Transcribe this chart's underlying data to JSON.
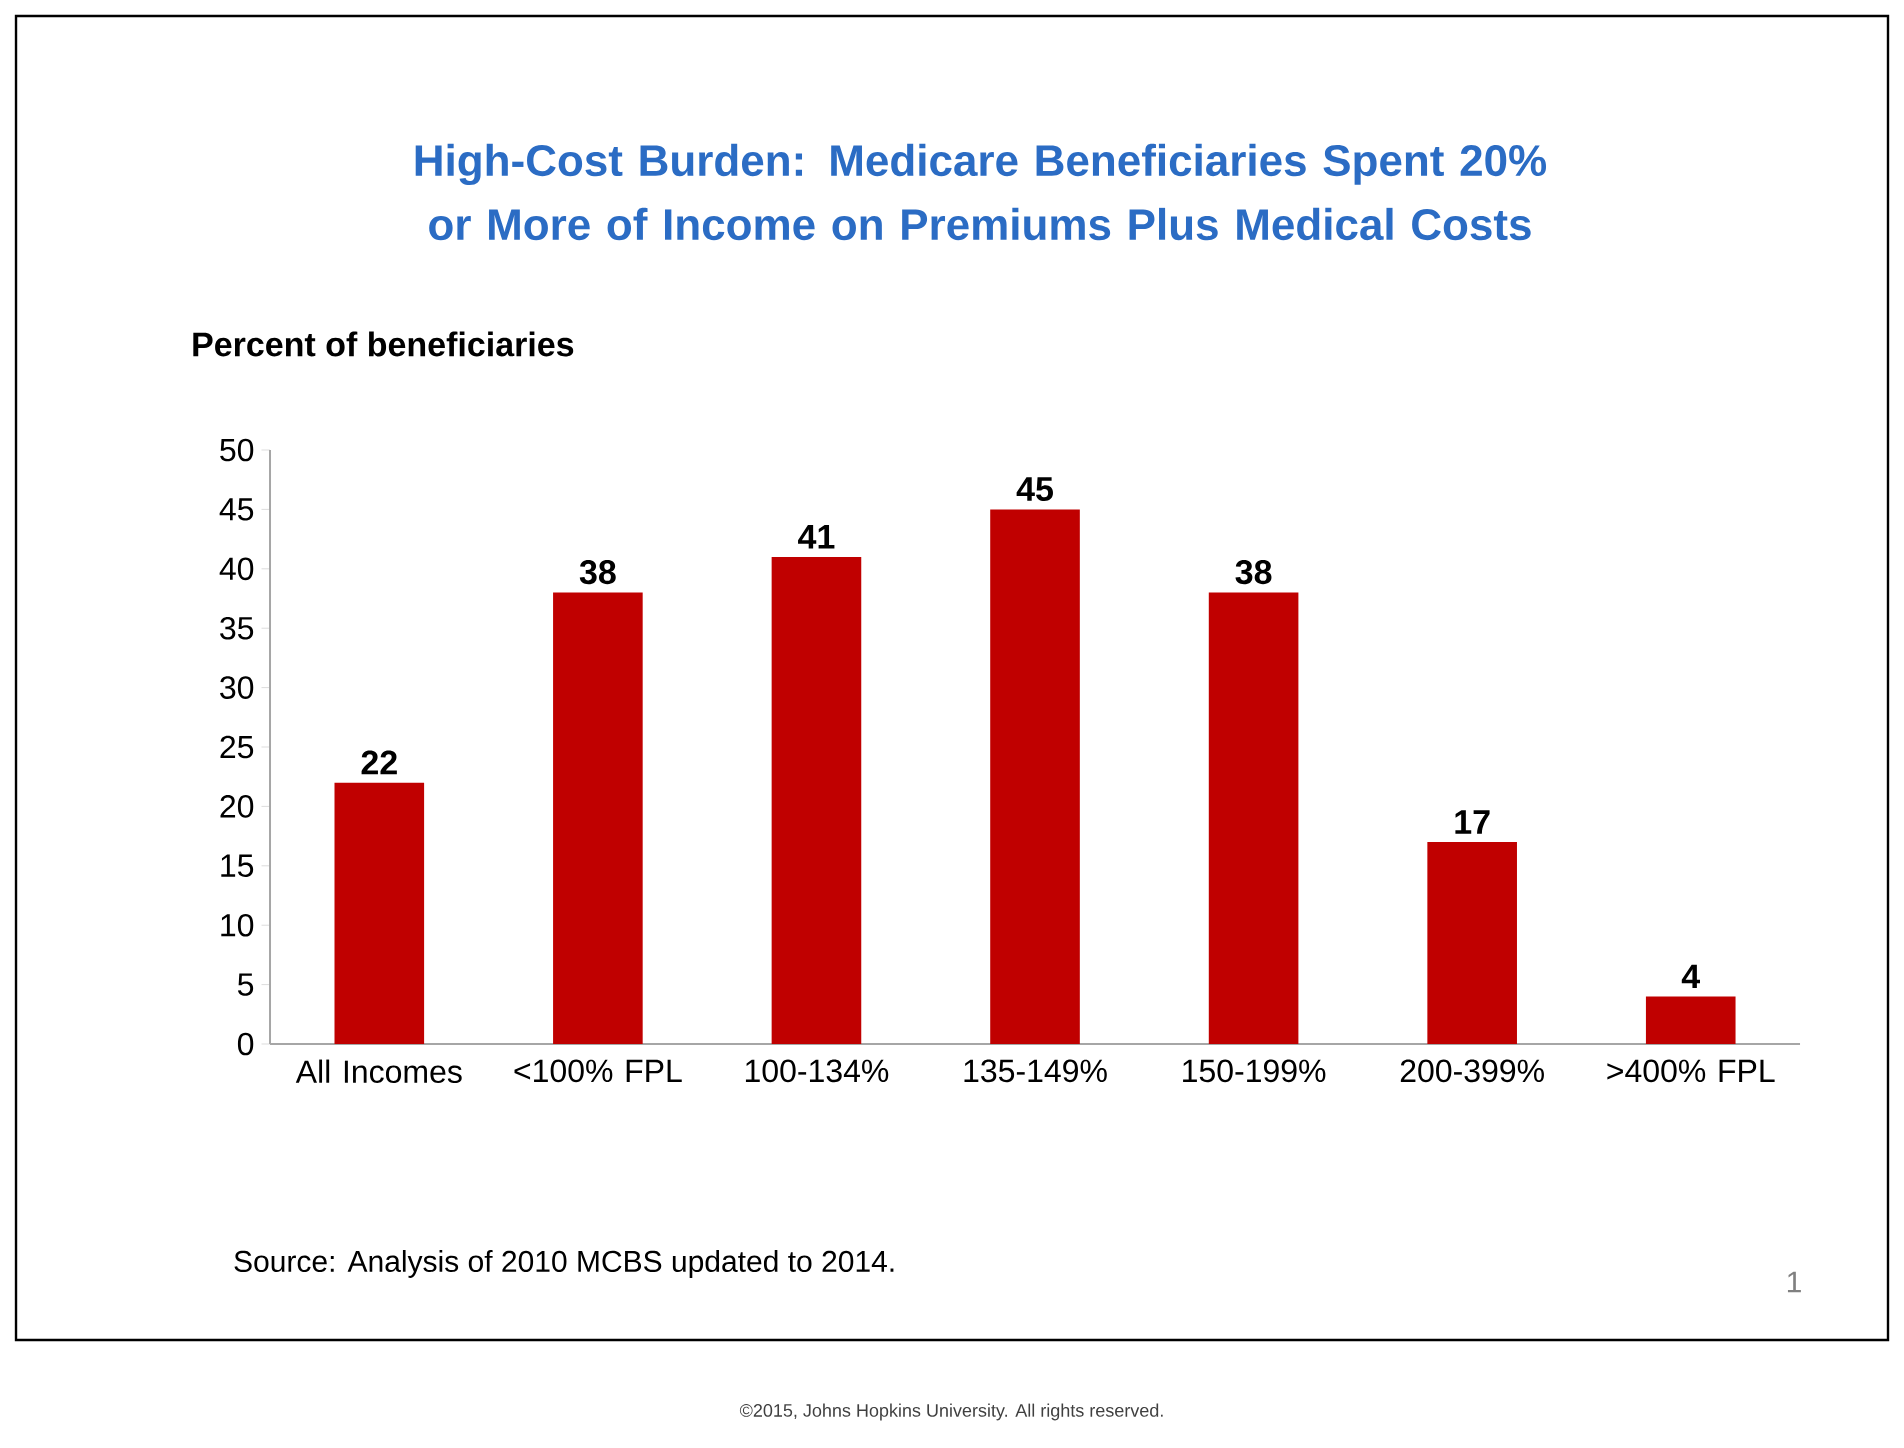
{
  "chart_data": {
    "type": "bar",
    "title": "High-Cost Burden: Medicare Beneficiaries Spent 20% or More of Income on Premiums Plus Medical Costs",
    "ylabel": "Percent of beneficiaries",
    "categories": [
      "All Incomes",
      "<100% FPL",
      "100-134%",
      "135-149%",
      "150-199%",
      "200-399%",
      ">400% FPL"
    ],
    "values": [
      22,
      38,
      41,
      45,
      38,
      17,
      4
    ],
    "color": "#c00000",
    "data_labels": true,
    "ylim": [
      0,
      50
    ],
    "yticks": [
      0,
      5,
      10,
      15,
      20,
      25,
      30,
      35,
      40,
      45,
      50
    ],
    "annotations": [
      "Source: Analysis of 2010 MCBS updated to 2014.",
      "1",
      "©2015, Johns Hopkins University. All rights reserved."
    ]
  }
}
